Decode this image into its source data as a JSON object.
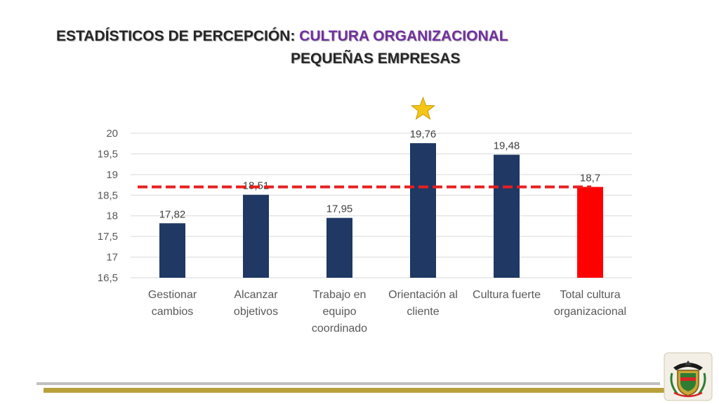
{
  "title": {
    "prefix": "ESTADÍSTICOS DE PERCEPCIÓN: ",
    "accent": "CULTURA ORGANIZACIONAL",
    "line2": "PEQUEÑAS EMPRESAS"
  },
  "colors": {
    "bar": "#1f3864",
    "highlight_bar": "#ff0000",
    "reference_line": "#e81f1f",
    "star": "#f5c518",
    "title_accent": "#7030a0",
    "footer_gray": "#bfbfbf",
    "footer_gold": "#b8a03a"
  },
  "chart_data": {
    "type": "bar",
    "categories": [
      [
        "Gestionar",
        "cambios"
      ],
      [
        "Alcanzar",
        "objetivos"
      ],
      [
        "Trabajo en",
        "equipo",
        "coordinado"
      ],
      [
        "Orientación al",
        "cliente"
      ],
      [
        "Cultura fuerte"
      ],
      [
        "Total cultura",
        "organizacional"
      ]
    ],
    "values": [
      17.82,
      18.51,
      17.95,
      19.76,
      19.48,
      18.7
    ],
    "value_labels": [
      "17,82",
      "18,51",
      "17,95",
      "19,76",
      "19,48",
      "18,7"
    ],
    "highlight_index": 5,
    "star_index": 3,
    "reference_line": {
      "value": 18.7,
      "style": "dashed"
    },
    "ylim": [
      16.5,
      20
    ],
    "yticks": [
      16.5,
      17,
      17.5,
      18,
      18.5,
      19,
      19.5,
      20
    ],
    "ytick_labels": [
      "16,5",
      "17",
      "17,5",
      "18",
      "18,5",
      "19",
      "19,5",
      "20"
    ],
    "grid": true,
    "legend": "none"
  },
  "footer": {
    "emblem": "university-coat-of-arms"
  }
}
